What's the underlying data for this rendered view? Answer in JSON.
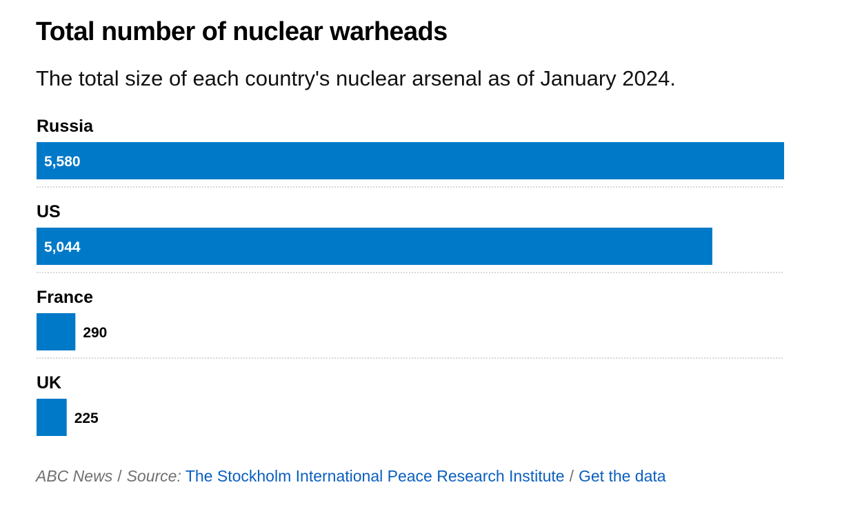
{
  "title": "Total number of nuclear warheads",
  "subtitle": "The total size of each country's nuclear arsenal as of January 2024.",
  "footer": {
    "publisher": "ABC News",
    "separator": "/",
    "source_label": "Source:",
    "source_link": "The Stockholm International Peace Research Institute",
    "data_link": "Get the data"
  },
  "colors": {
    "bar": "#0079c8",
    "divider": "#c8c8c8",
    "link": "#0a5fbf"
  },
  "chart_data": {
    "type": "bar",
    "orientation": "horizontal",
    "categories": [
      "Russia",
      "US",
      "France",
      "UK"
    ],
    "values": [
      5580,
      5044,
      290,
      225
    ],
    "value_labels": [
      "5,580",
      "5,044",
      "290",
      "225"
    ],
    "title": "Total number of nuclear warheads",
    "subtitle": "The total size of each country's nuclear arsenal as of January 2024.",
    "xlim": [
      0,
      5580
    ],
    "grid": false,
    "legend": "none"
  }
}
